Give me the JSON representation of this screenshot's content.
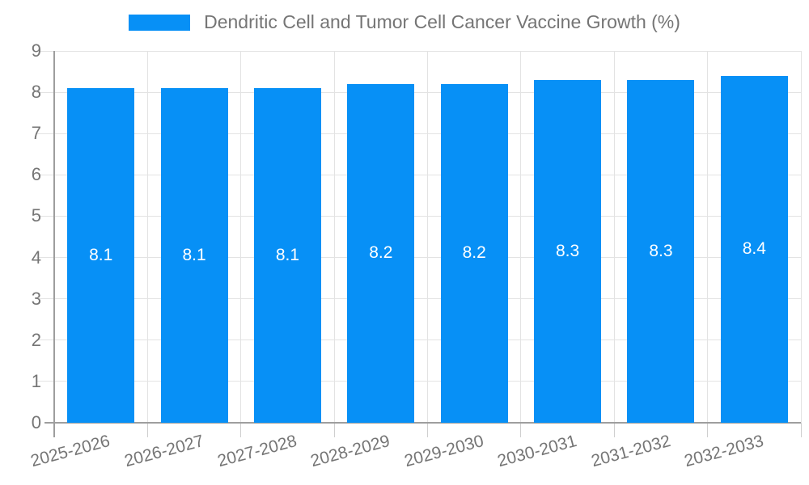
{
  "header": {
    "title": "Dendritic Cell and Tumor Cell Cancer Vaccine Growth (%)"
  },
  "chart_data": {
    "type": "bar",
    "title": "Dendritic Cell and Tumor Cell Cancer Vaccine Growth (%)",
    "categories": [
      "2025-2026",
      "2026-2027",
      "2027-2028",
      "2028-2029",
      "2029-2030",
      "2030-2031",
      "2031-2032",
      "2032-2033"
    ],
    "values": [
      8.1,
      8.1,
      8.1,
      8.2,
      8.2,
      8.3,
      8.3,
      8.4
    ],
    "value_labels": [
      "8.1",
      "8.1",
      "8.1",
      "8.2",
      "8.2",
      "8.3",
      "8.3",
      "8.4"
    ],
    "xlabel": "",
    "ylabel": "",
    "ylim": [
      0,
      9
    ],
    "yticks": [
      0,
      1,
      2,
      3,
      4,
      5,
      6,
      7,
      8,
      9
    ],
    "grid": true,
    "legend_position": "top-center",
    "colors": {
      "bar": "#0790f6",
      "grid": "#e3e3e3",
      "axis": "#9e9e9e",
      "tick": "#cfcfcf",
      "text": "#757575",
      "bar_label": "#ffffff",
      "background": "#ffffff"
    }
  }
}
